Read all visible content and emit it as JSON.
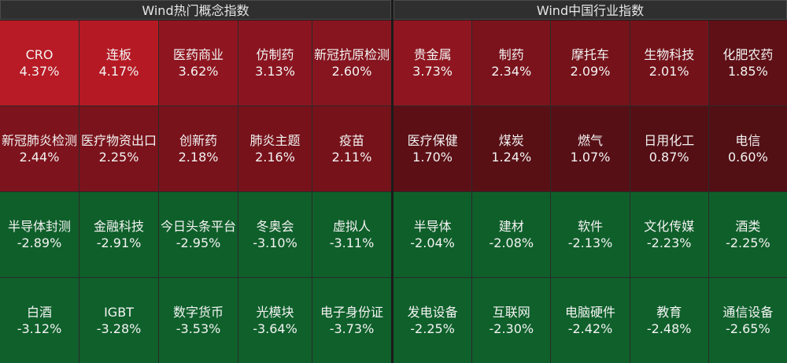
{
  "panels": {
    "left": {
      "title": "Wind热门概念指数",
      "tiles": [
        {
          "name": "CRO",
          "pct": "4.37%",
          "color": "#b81b25"
        },
        {
          "name": "连板",
          "pct": "4.17%",
          "color": "#b51a24"
        },
        {
          "name": "医药商业",
          "pct": "3.62%",
          "color": "#8f1620"
        },
        {
          "name": "仿制药",
          "pct": "3.13%",
          "color": "#8a1520"
        },
        {
          "name": "新冠抗原检测",
          "pct": "2.60%",
          "color": "#86151f"
        },
        {
          "name": "新冠肺炎检测",
          "pct": "2.44%",
          "color": "#7d131c"
        },
        {
          "name": "医疗物资出口",
          "pct": "2.25%",
          "color": "#7a131b"
        },
        {
          "name": "创新药",
          "pct": "2.18%",
          "color": "#78121b"
        },
        {
          "name": "肺炎主题",
          "pct": "2.16%",
          "color": "#77121a"
        },
        {
          "name": "疫苗",
          "pct": "2.11%",
          "color": "#76121a"
        },
        {
          "name": "半导体封测",
          "pct": "-2.89%",
          "color": "#0f5f2a"
        },
        {
          "name": "金融科技",
          "pct": "-2.91%",
          "color": "#0f5f2a"
        },
        {
          "name": "今日头条平台",
          "pct": "-2.95%",
          "color": "#0f5f2a"
        },
        {
          "name": "冬奥会",
          "pct": "-3.10%",
          "color": "#0f5f2a"
        },
        {
          "name": "虚拟人",
          "pct": "-3.11%",
          "color": "#0f5f2a"
        },
        {
          "name": "白酒",
          "pct": "-3.12%",
          "color": "#0f602b"
        },
        {
          "name": "IGBT",
          "pct": "-3.28%",
          "color": "#0f602b"
        },
        {
          "name": "数字货币",
          "pct": "-3.53%",
          "color": "#0f602b"
        },
        {
          "name": "光模块",
          "pct": "-3.64%",
          "color": "#0f602b"
        },
        {
          "name": "电子身份证",
          "pct": "-3.73%",
          "color": "#0f602b"
        }
      ]
    },
    "right": {
      "title": "Wind中国行业指数",
      "tiles": [
        {
          "name": "贵金属",
          "pct": "3.73%",
          "color": "#8f1620"
        },
        {
          "name": "制药",
          "pct": "2.34%",
          "color": "#7b131c"
        },
        {
          "name": "摩托车",
          "pct": "2.09%",
          "color": "#76121a"
        },
        {
          "name": "生物科技",
          "pct": "2.01%",
          "color": "#74121a"
        },
        {
          "name": "化肥农药",
          "pct": "1.85%",
          "color": "#5e1016"
        },
        {
          "name": "医疗保健",
          "pct": "1.70%",
          "color": "#5c1016"
        },
        {
          "name": "煤炭",
          "pct": "1.24%",
          "color": "#581015"
        },
        {
          "name": "燃气",
          "pct": "1.07%",
          "color": "#560f15"
        },
        {
          "name": "日用化工",
          "pct": "0.87%",
          "color": "#540f14"
        },
        {
          "name": "电信",
          "pct": "0.60%",
          "color": "#520f14"
        },
        {
          "name": "半导体",
          "pct": "-2.04%",
          "color": "#0f5f2a"
        },
        {
          "name": "建材",
          "pct": "-2.08%",
          "color": "#0f5f2a"
        },
        {
          "name": "软件",
          "pct": "-2.13%",
          "color": "#0f5f2a"
        },
        {
          "name": "文化传媒",
          "pct": "-2.23%",
          "color": "#0f5f2a"
        },
        {
          "name": "酒类",
          "pct": "-2.25%",
          "color": "#0f5f2a"
        },
        {
          "name": "发电设备",
          "pct": "-2.25%",
          "color": "#0f602b"
        },
        {
          "name": "互联网",
          "pct": "-2.30%",
          "color": "#0f602b"
        },
        {
          "name": "电脑硬件",
          "pct": "-2.42%",
          "color": "#0f602b"
        },
        {
          "name": "教育",
          "pct": "-2.48%",
          "color": "#0f602b"
        },
        {
          "name": "通信设备",
          "pct": "-2.65%",
          "color": "#0f602b"
        }
      ]
    }
  }
}
